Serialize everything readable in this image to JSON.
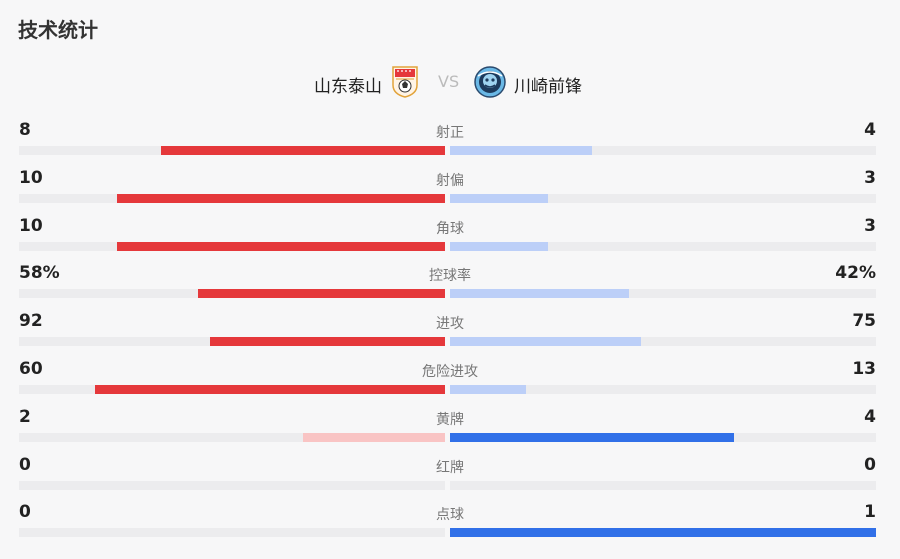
{
  "page": {
    "title": "技术统计"
  },
  "match": {
    "home_team": "山东泰山",
    "vs": "VS",
    "away_team": "川崎前锋",
    "home_logo_icon": "shandong-taishan-crest-icon",
    "away_logo_icon": "kawasaki-frontale-crest-icon"
  },
  "colors": {
    "home_strong": "#e5383b",
    "home_light": "#f9c4c4",
    "away_strong": "#3170e8",
    "away_light": "#bccff8",
    "track": "#ececee"
  },
  "stats": [
    {
      "label": "射正",
      "home": "8",
      "away": "4",
      "home_share": 0.667,
      "away_share": 0.333,
      "leader": "home"
    },
    {
      "label": "射偏",
      "home": "10",
      "away": "3",
      "home_share": 0.769,
      "away_share": 0.231,
      "leader": "home"
    },
    {
      "label": "角球",
      "home": "10",
      "away": "3",
      "home_share": 0.769,
      "away_share": 0.231,
      "leader": "home"
    },
    {
      "label": "控球率",
      "home": "58%",
      "away": "42%",
      "home_share": 0.58,
      "away_share": 0.42,
      "leader": "home"
    },
    {
      "label": "进攻",
      "home": "92",
      "away": "75",
      "home_share": 0.551,
      "away_share": 0.449,
      "leader": "home"
    },
    {
      "label": "危险进攻",
      "home": "60",
      "away": "13",
      "home_share": 0.822,
      "away_share": 0.178,
      "leader": "home"
    },
    {
      "label": "黄牌",
      "home": "2",
      "away": "4",
      "home_share": 0.333,
      "away_share": 0.667,
      "leader": "away"
    },
    {
      "label": "红牌",
      "home": "0",
      "away": "0",
      "home_share": 0,
      "away_share": 0,
      "leader": "none"
    },
    {
      "label": "点球",
      "home": "0",
      "away": "1",
      "home_share": 0,
      "away_share": 1,
      "leader": "away"
    }
  ]
}
